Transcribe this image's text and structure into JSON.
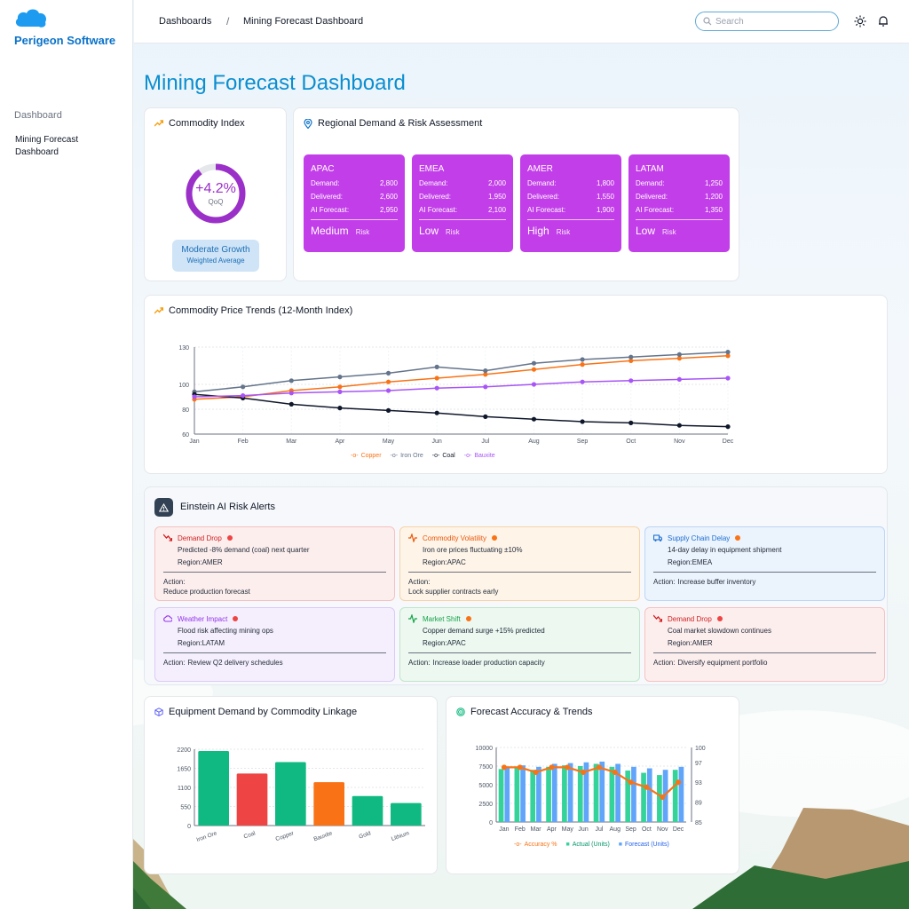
{
  "brand": {
    "name": "Perigeon Software",
    "colors": {
      "primary": "#0b8ed0",
      "accent": "#c23ee8"
    }
  },
  "sidebar": {
    "section": "Dashboard",
    "items": [
      {
        "label": "Mining Forecast Dashboard"
      }
    ]
  },
  "header": {
    "breadcrumb": [
      "Dashboards",
      "Mining Forecast Dashboard"
    ],
    "search_placeholder": "Search",
    "icons": [
      "sun-icon",
      "bell-icon"
    ]
  },
  "page_title": "Mining Forecast Dashboard",
  "commodity_index": {
    "title": "Commodity Index",
    "value": "+4.2%",
    "value_label": "QoQ",
    "gauge_fill": 0.9,
    "status": "Moderate Growth",
    "status_sub": "Weighted Average"
  },
  "regional": {
    "title": "Regional Demand & Risk Assessment",
    "row_labels": [
      "Demand:",
      "Delivered:",
      "AI Forecast:"
    ],
    "risk_suffix": "Risk",
    "regions": [
      {
        "name": "APAC",
        "demand": "2,800",
        "delivered": "2,600",
        "forecast": "2,950",
        "risk": "Medium"
      },
      {
        "name": "EMEA",
        "demand": "2,000",
        "delivered": "1,950",
        "forecast": "2,100",
        "risk": "Low"
      },
      {
        "name": "AMER",
        "demand": "1,800",
        "delivered": "1,550",
        "forecast": "1,900",
        "risk": "High"
      },
      {
        "name": "LATAM",
        "demand": "1,250",
        "delivered": "1,200",
        "forecast": "1,350",
        "risk": "Low"
      }
    ]
  },
  "price_trends": {
    "title": "Commodity Price Trends (12-Month Index)"
  },
  "alerts": {
    "title": "Einstein AI Risk Alerts",
    "region_label": "Region:",
    "action_label": "Action:",
    "items": [
      {
        "title": "Demand Drop",
        "desc": "Predicted -8% demand (coal) next quarter",
        "region": "AMER",
        "action": "Reduce production forecast",
        "theme": "red"
      },
      {
        "title": "Commodity Volatility",
        "desc": "Iron ore prices fluctuating ±10%",
        "region": "APAC",
        "action": "Lock supplier contracts early",
        "theme": "orange"
      },
      {
        "title": "Supply Chain Delay",
        "desc": "14-day delay in equipment shipment",
        "region": "EMEA",
        "action": "Increase buffer inventory",
        "theme": "blue"
      },
      {
        "title": "Weather Impact",
        "desc": "Flood risk affecting mining ops",
        "region": "LATAM",
        "action": "Review Q2 delivery schedules",
        "theme": "purple"
      },
      {
        "title": "Market Shift",
        "desc": "Copper demand surge +15% predicted",
        "region": "APAC",
        "action": "Increase loader production capacity",
        "theme": "green"
      },
      {
        "title": "Demand Drop",
        "desc": "Coal market slowdown continues",
        "region": "AMER",
        "action": "Diversify equipment portfolio",
        "theme": "red"
      }
    ]
  },
  "equipment": {
    "title": "Equipment Demand by Commodity Linkage"
  },
  "accuracy": {
    "title": "Forecast Accuracy & Trends"
  },
  "chart_data": [
    {
      "type": "line",
      "x": [
        "Jan",
        "Feb",
        "Mar",
        "Apr",
        "May",
        "Jun",
        "Jul",
        "Aug",
        "Sep",
        "Oct",
        "Nov",
        "Dec"
      ],
      "ylim": [
        60,
        130
      ],
      "yticks": [
        60,
        80,
        100,
        130
      ],
      "series": [
        {
          "name": "Copper",
          "color": "#f97316",
          "values": [
            88,
            90,
            95,
            98,
            102,
            105,
            108,
            112,
            116,
            119,
            121,
            123
          ]
        },
        {
          "name": "Iron Ore",
          "color": "#64748b",
          "values": [
            94,
            98,
            103,
            106,
            109,
            114,
            111,
            117,
            120,
            122,
            124,
            126
          ]
        },
        {
          "name": "Coal",
          "color": "#0f172a",
          "values": [
            92,
            89,
            84,
            81,
            79,
            77,
            74,
            72,
            70,
            69,
            67,
            66
          ]
        },
        {
          "name": "Bauxite",
          "color": "#a855f7",
          "values": [
            90,
            91,
            93,
            94,
            95,
            97,
            98,
            100,
            102,
            103,
            104,
            105
          ]
        }
      ]
    },
    {
      "type": "bar",
      "categories": [
        "Iron Ore",
        "Coal",
        "Copper",
        "Bauxite",
        "Gold",
        "Lithium"
      ],
      "values": [
        2150,
        1500,
        1830,
        1250,
        850,
        650
      ],
      "colors": [
        "#10b981",
        "#ef4444",
        "#10b981",
        "#f97316",
        "#10b981",
        "#10b981"
      ],
      "ylim": [
        0,
        2200
      ],
      "yticks": [
        0,
        550,
        1100,
        1650,
        2200
      ]
    },
    {
      "type": "bar",
      "categories": [
        "Jan",
        "Feb",
        "Mar",
        "Apr",
        "May",
        "Jun",
        "Jul",
        "Aug",
        "Sep",
        "Oct",
        "Nov",
        "Dec"
      ],
      "series": [
        {
          "name": "Accuracy %",
          "color": "#f97316",
          "axis": "right",
          "values": [
            96,
            96,
            95,
            96,
            96,
            95,
            96,
            95,
            93,
            92,
            90,
            93
          ]
        },
        {
          "name": "Actual (Units)",
          "color": "#34d399",
          "values": [
            7100,
            7300,
            7000,
            7400,
            7600,
            7500,
            7800,
            7400,
            6900,
            6600,
            6300,
            7000
          ]
        },
        {
          "name": "Forecast (Units)",
          "color": "#60a5fa",
          "values": [
            7300,
            7600,
            7400,
            7800,
            7900,
            8000,
            8100,
            7800,
            7400,
            7200,
            7000,
            7400
          ]
        }
      ],
      "ylim": [
        0,
        10000
      ],
      "yticks": [
        0,
        2500,
        5000,
        7500,
        10000
      ],
      "y2lim": [
        85,
        100
      ],
      "y2ticks": [
        85,
        89,
        93,
        97,
        100
      ]
    }
  ]
}
